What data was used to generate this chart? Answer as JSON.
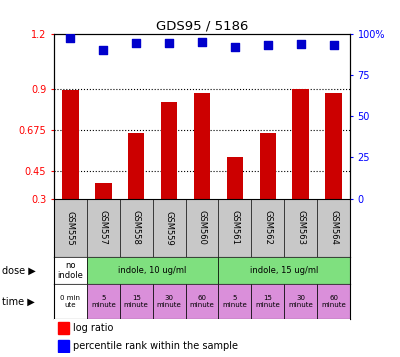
{
  "title": "GDS95 / 5186",
  "samples": [
    "GSM555",
    "GSM557",
    "GSM558",
    "GSM559",
    "GSM560",
    "GSM561",
    "GSM562",
    "GSM563",
    "GSM564"
  ],
  "log_ratio": [
    0.895,
    0.385,
    0.66,
    0.83,
    0.875,
    0.525,
    0.66,
    0.9,
    0.875
  ],
  "percentile_rank": [
    97.5,
    90.5,
    94.5,
    94.5,
    95.0,
    92.0,
    93.0,
    94.0,
    93.0
  ],
  "bar_color": "#cc0000",
  "scatter_color": "#0000cc",
  "ylim_left": [
    0.3,
    1.2
  ],
  "ylim_right": [
    0,
    100
  ],
  "yticks_left": [
    0.3,
    0.45,
    0.675,
    0.9,
    1.2
  ],
  "yticks_right": [
    0,
    25,
    50,
    75,
    100
  ],
  "ytick_labels_left": [
    "0.3",
    "0.45",
    "0.675",
    "0.9",
    "1.2"
  ],
  "ytick_labels_right": [
    "0",
    "25",
    "50",
    "75",
    "100%"
  ],
  "hlines": [
    0.45,
    0.675,
    0.9
  ],
  "plot_bg": "#ffffff",
  "xlabels_bg": "#c8c8c8",
  "dose_segments": [
    {
      "start": 0,
      "end": 1,
      "label": "no\nindole",
      "color": "#ffffff"
    },
    {
      "start": 1,
      "end": 5,
      "label": "indole, 10 ug/ml",
      "color": "#7fe07f"
    },
    {
      "start": 5,
      "end": 9,
      "label": "indole, 15 ug/ml",
      "color": "#7fe07f"
    }
  ],
  "time_labels": [
    "0 min\nute",
    "5\nminute",
    "15\nminute",
    "30\nminute",
    "60\nminute",
    "5\nminute",
    "15\nminute",
    "30\nminute",
    "60\nminute"
  ],
  "time_colors": [
    "#ffffff",
    "#da8fda",
    "#da8fda",
    "#da8fda",
    "#da8fda",
    "#da8fda",
    "#da8fda",
    "#da8fda",
    "#da8fda"
  ],
  "legend_log_ratio": "log ratio",
  "legend_percentile": "percentile rank within the sample",
  "bar_width": 0.5
}
